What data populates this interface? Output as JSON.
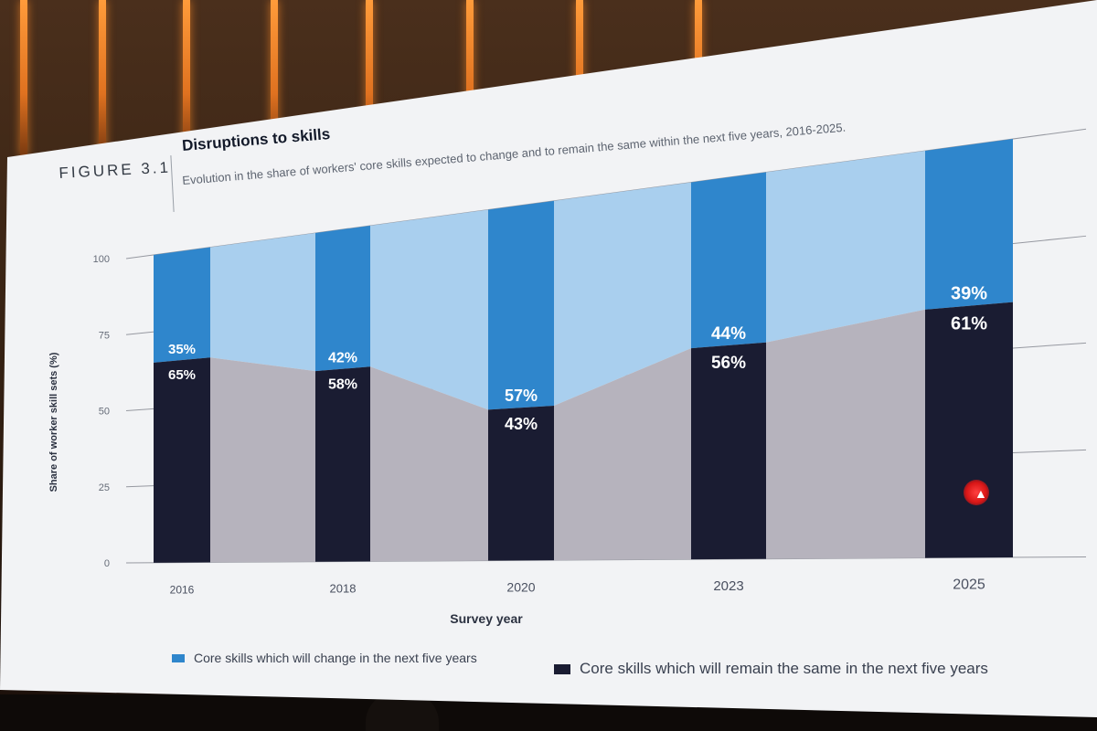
{
  "figure_label": "FIGURE 3.1",
  "title": "Disruptions to skills",
  "subtitle": "Evolution in the share of workers' core skills expected to change and to remain the same within the next five years, 2016-2025.",
  "colors": {
    "change": "#2f86cc",
    "change_area": "#a9cfee",
    "remain": "#1a1c32",
    "remain_area": "#b6b3bd",
    "grid": "#4b4f5c"
  },
  "chart_data": {
    "type": "bar",
    "stacked": true,
    "categories": [
      "2016",
      "2018",
      "2020",
      "2023",
      "2025"
    ],
    "series": [
      {
        "name": "Core skills which will remain the same in the next five years",
        "values": [
          65,
          58,
          43,
          56,
          61
        ],
        "labels": [
          "65%",
          "58%",
          "43%",
          "56%",
          "61%"
        ]
      },
      {
        "name": "Core skills which will change in the next five years",
        "values": [
          35,
          42,
          57,
          44,
          39
        ],
        "labels": [
          "35%",
          "42%",
          "57%",
          "44%",
          "39%"
        ]
      }
    ],
    "xlabel": "Survey year",
    "ylabel": "Share of worker skill sets (%)",
    "ylim": [
      0,
      100
    ],
    "yticks": [
      "0",
      "25",
      "50",
      "75",
      "100"
    ],
    "grid": true,
    "legend_position": "bottom",
    "legend": [
      {
        "label": "Core skills which will change in the next five years",
        "color": "#2f86cc"
      },
      {
        "label": "Core skills which will remain the same in the next five years",
        "color": "#1a1c32"
      }
    ]
  }
}
